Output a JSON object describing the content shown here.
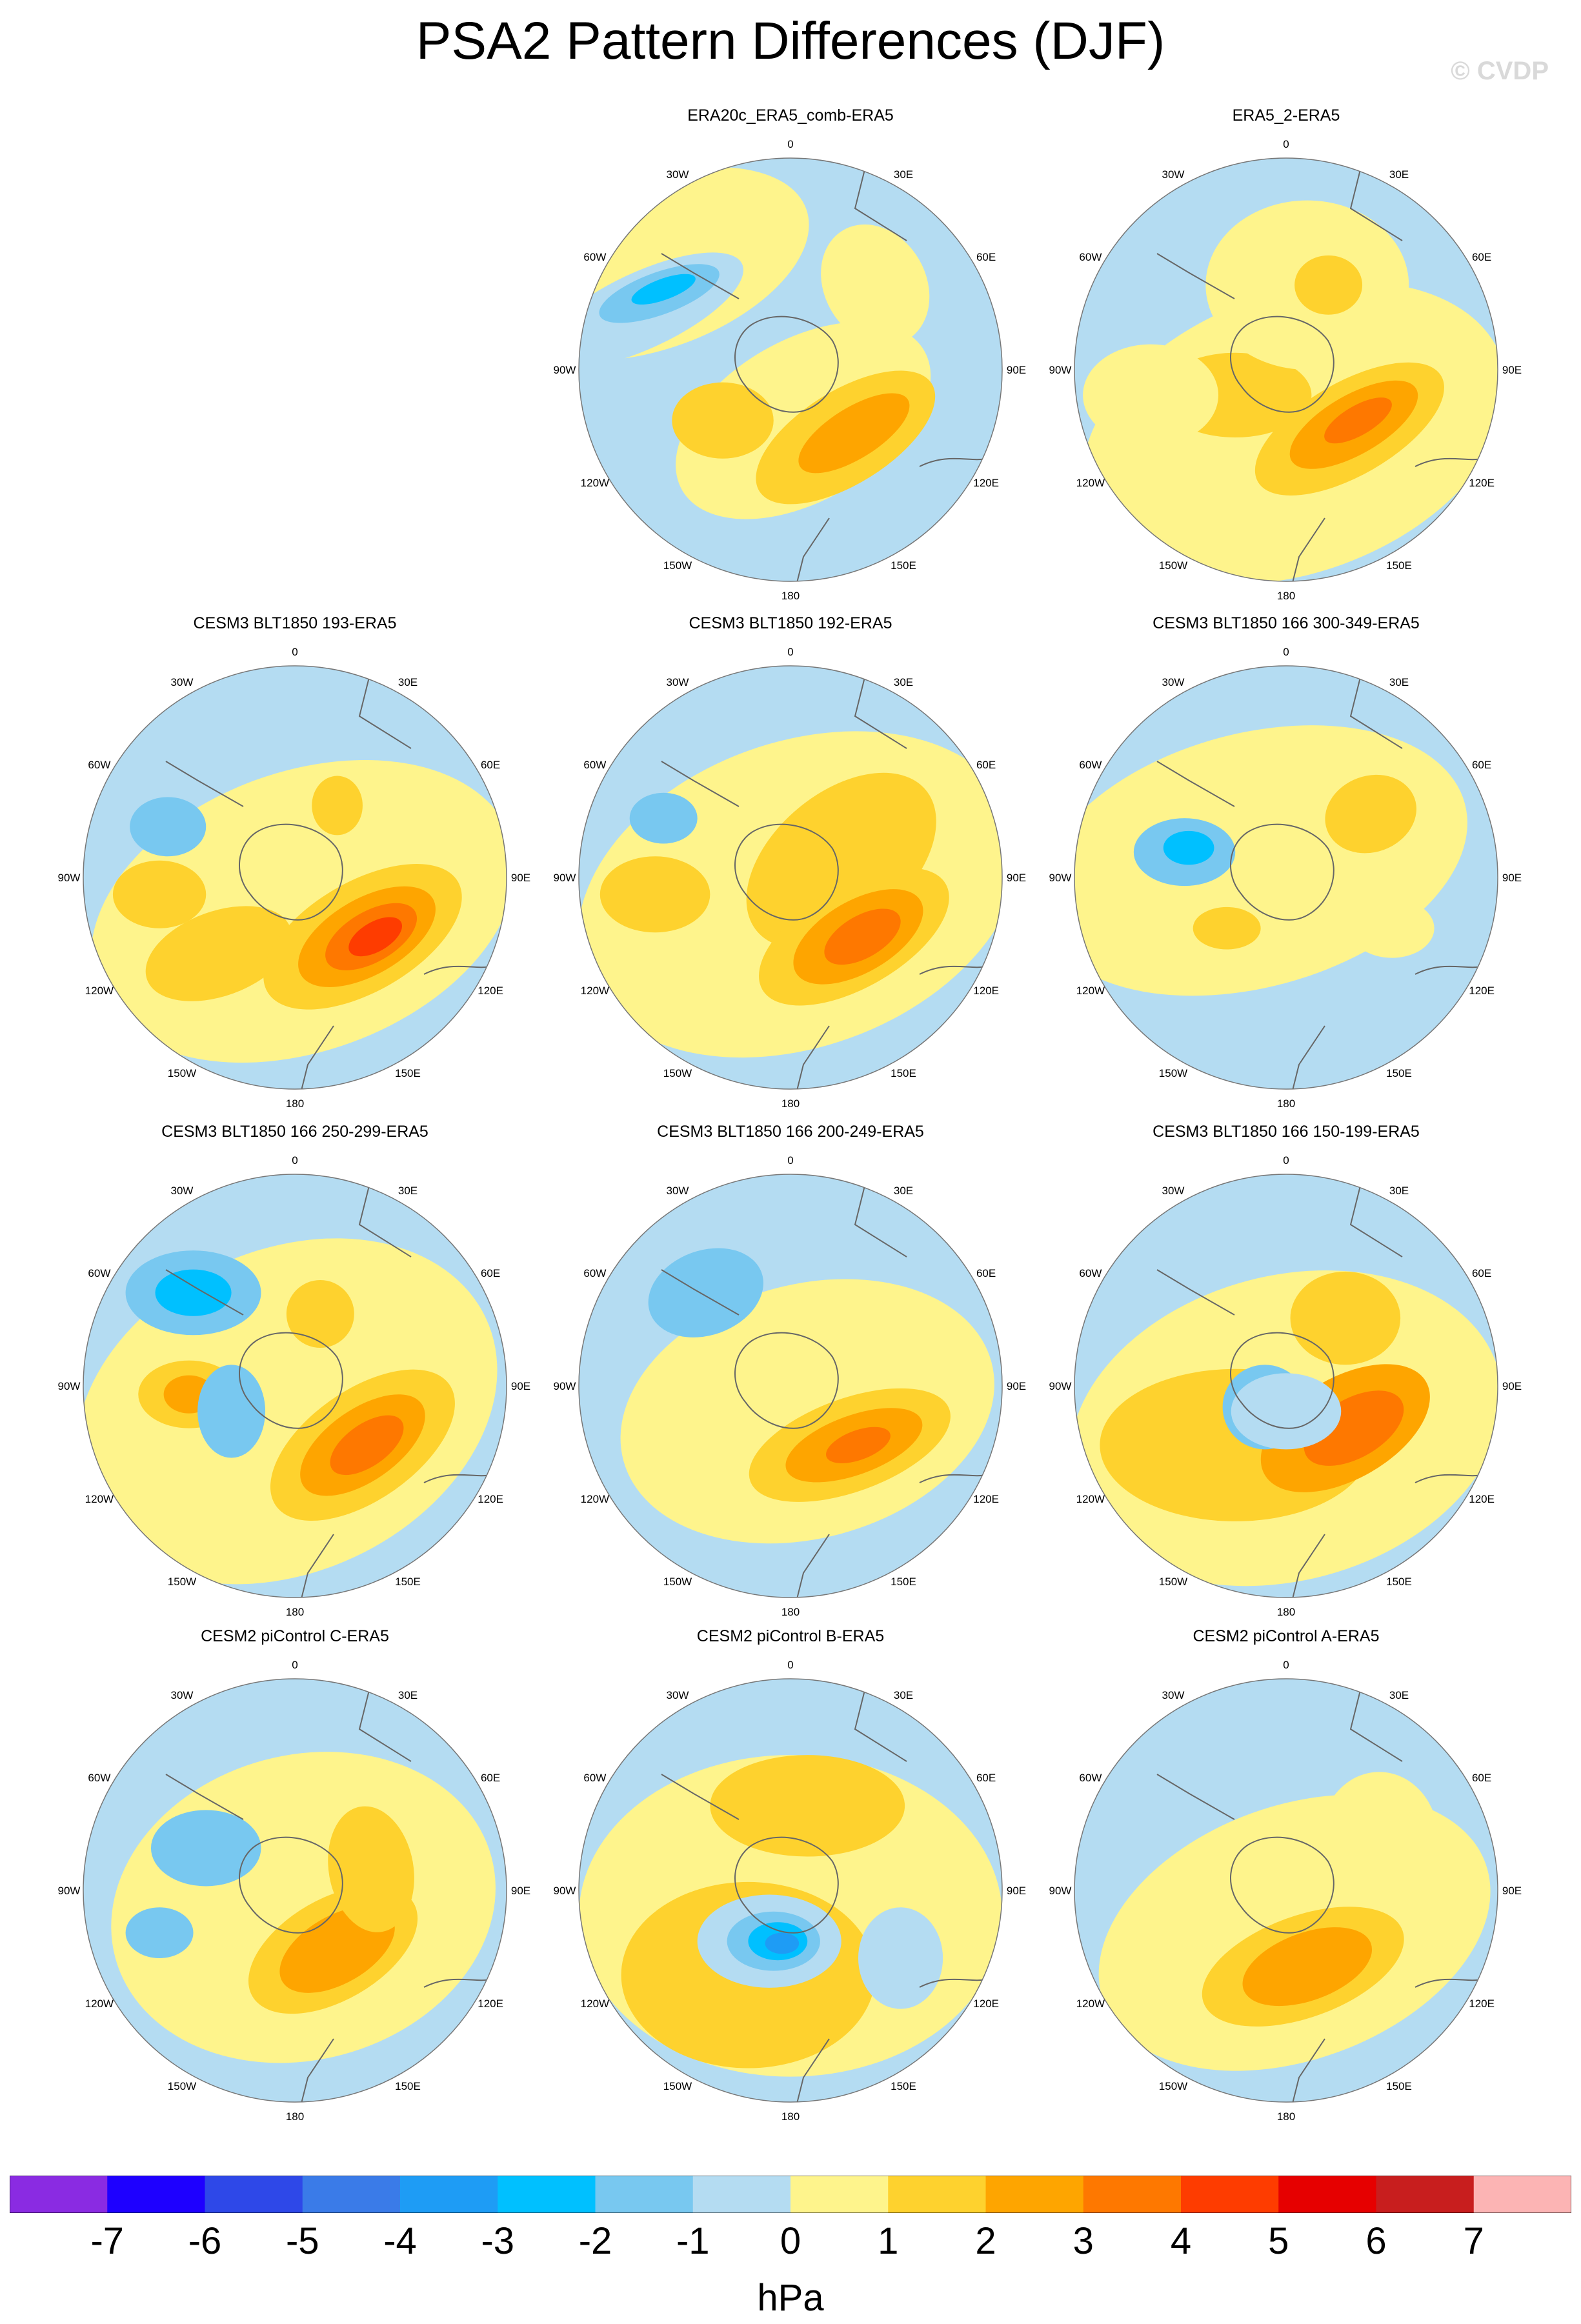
{
  "page": {
    "title": "PSA2 Pattern Differences (DJF)",
    "watermark": "© CVDP"
  },
  "chart_data": {
    "type": "heatmap",
    "title": "PSA2 Pattern Differences (DJF)",
    "projection": "south-polar-stereographic",
    "units": "hPa",
    "colorbar": {
      "labels": [
        "-7",
        "-6",
        "-5",
        "-4",
        "-3",
        "-2",
        "-1",
        "0",
        "1",
        "2",
        "3",
        "4",
        "5",
        "6",
        "7"
      ],
      "colors": [
        "#8a2be2",
        "#1e00ff",
        "#2e48e8",
        "#3a7be8",
        "#1e9cf5",
        "#00c0ff",
        "#78c8f0",
        "#b4dcf2",
        "#fef48c",
        "#fed22e",
        "#fea500",
        "#fe7800",
        "#fe3c00",
        "#e60000",
        "#c81e1e",
        "#fcb4b4"
      ]
    },
    "lon_labels": [
      "0",
      "30E",
      "60E",
      "90E",
      "120E",
      "150E",
      "180",
      "150W",
      "120W",
      "90W",
      "60W",
      "30W"
    ],
    "panels": [
      {
        "title": "ERA20c_ERA5_comb-ERA5"
      },
      {
        "title": "ERA5_2-ERA5"
      },
      {
        "title": "CESM3 BLT1850 193-ERA5"
      },
      {
        "title": "CESM3 BLT1850 192-ERA5"
      },
      {
        "title": "CESM3 BLT1850 166 300-349-ERA5"
      },
      {
        "title": "CESM3 BLT1850 166 250-299-ERA5"
      },
      {
        "title": "CESM3 BLT1850 166 200-249-ERA5"
      },
      {
        "title": "CESM3 BLT1850 166 150-199-ERA5"
      },
      {
        "title": "CESM2 piControl C-ERA5"
      },
      {
        "title": "CESM2 piControl B-ERA5"
      },
      {
        "title": "CESM2 piControl A-ERA5"
      }
    ]
  }
}
